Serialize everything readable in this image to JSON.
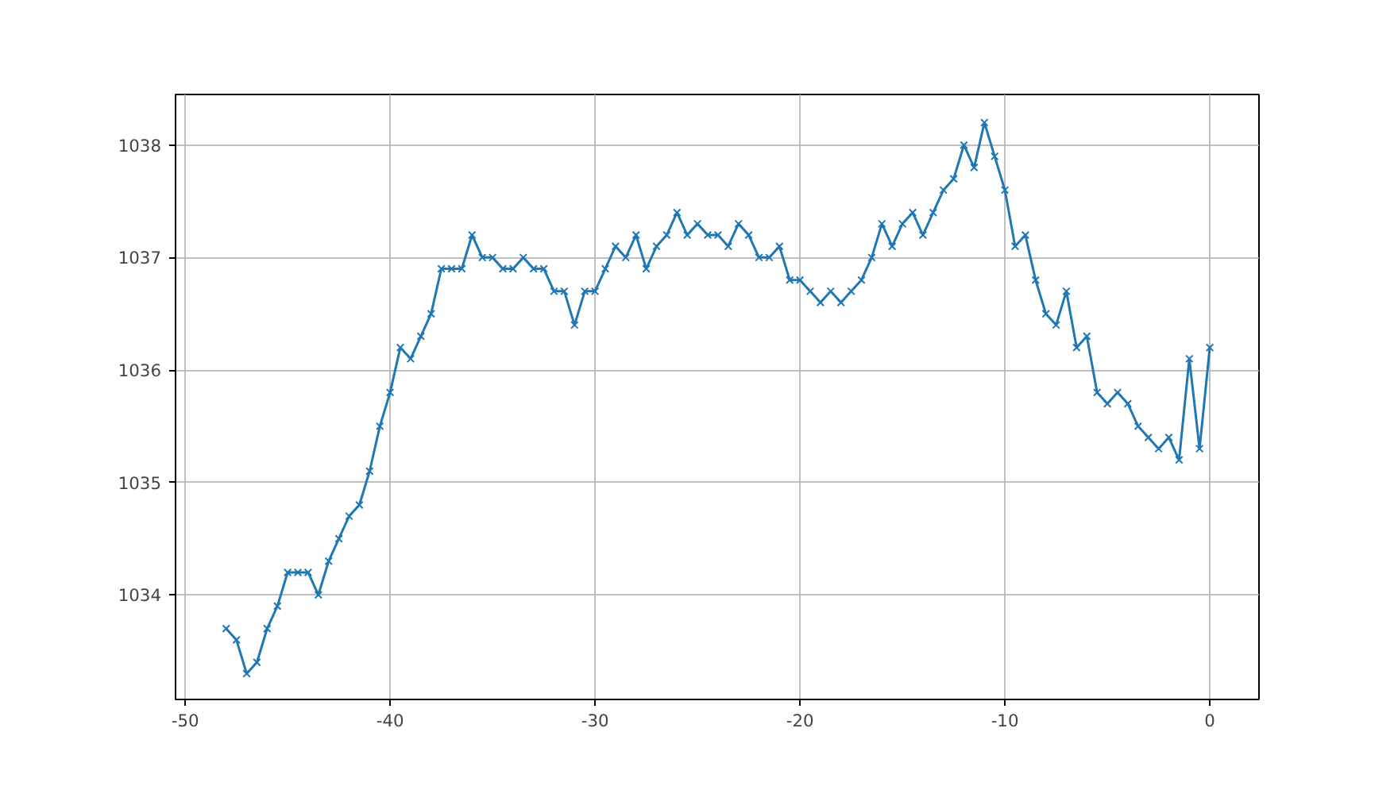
{
  "chart_data": {
    "type": "line",
    "marker": "cross",
    "line_style": "solid",
    "grid": true,
    "x": [
      -48,
      -47.5,
      -47,
      -46.5,
      -46,
      -45.5,
      -45,
      -44.5,
      -44,
      -43.5,
      -43,
      -42.5,
      -42,
      -41.5,
      -41,
      -40.5,
      -40,
      -39.5,
      -39,
      -38.5,
      -38,
      -37.5,
      -37,
      -36.5,
      -36,
      -35.5,
      -35,
      -34.5,
      -34,
      -33.5,
      -33,
      -32.5,
      -32,
      -31.5,
      -31,
      -30.5,
      -30,
      -29.5,
      -29,
      -28.5,
      -28,
      -27.5,
      -27,
      -26.5,
      -26,
      -25.5,
      -25,
      -24.5,
      -24,
      -23.5,
      -23,
      -22.5,
      -22,
      -21.5,
      -21,
      -20.5,
      -20,
      -19.5,
      -19,
      -18.5,
      -18,
      -17.5,
      -17,
      -16.5,
      -16,
      -15.5,
      -15,
      -14.5,
      -14,
      -13.5,
      -13,
      -12.5,
      -12,
      -11.5,
      -11,
      -10.5,
      -10,
      -9.5,
      -9,
      -8.5,
      -8,
      -7.5,
      -7,
      -6.5,
      -6,
      -5.5,
      -5,
      -4.5,
      -4,
      -3.5,
      -3,
      -2.5,
      -2,
      -1.5,
      -1,
      -0.5,
      0
    ],
    "series": [
      {
        "color": "#1f77b4",
        "values": [
          1033.7,
          1033.6,
          1033.3,
          1033.4,
          1033.7,
          1033.9,
          1034.2,
          1034.2,
          1034.2,
          1034.0,
          1034.3,
          1034.5,
          1034.7,
          1034.8,
          1035.1,
          1035.5,
          1035.8,
          1036.2,
          1036.1,
          1036.3,
          1036.5,
          1036.9,
          1036.9,
          1036.9,
          1037.2,
          1037.0,
          1037.0,
          1036.9,
          1036.9,
          1037.0,
          1036.9,
          1036.9,
          1036.7,
          1036.7,
          1036.4,
          1036.7,
          1036.7,
          1036.9,
          1037.1,
          1037.0,
          1037.2,
          1036.9,
          1037.1,
          1037.2,
          1037.4,
          1037.2,
          1037.3,
          1037.2,
          1037.2,
          1037.1,
          1037.3,
          1037.2,
          1037.0,
          1037.0,
          1037.1,
          1036.8,
          1036.8,
          1036.7,
          1036.6,
          1036.7,
          1036.6,
          1036.7,
          1036.8,
          1037.0,
          1037.3,
          1037.1,
          1037.3,
          1037.4,
          1037.2,
          1037.4,
          1037.6,
          1037.7,
          1038.0,
          1037.8,
          1038.2,
          1037.9,
          1037.6,
          1037.1,
          1037.2,
          1036.8,
          1036.5,
          1036.4,
          1036.7,
          1036.2,
          1036.3,
          1035.8,
          1035.7,
          1035.8,
          1035.7,
          1035.5,
          1035.4,
          1035.3,
          1035.4,
          1035.2,
          1036.1,
          1035.3,
          1036.2
        ]
      }
    ],
    "xlim": [
      -50.47,
      2.4
    ],
    "ylim": [
      1033.07,
      1038.45
    ],
    "xticks": [
      -50,
      -40,
      -30,
      -20,
      -10,
      0
    ],
    "yticks": [
      1034,
      1035,
      1036,
      1037,
      1038
    ]
  }
}
